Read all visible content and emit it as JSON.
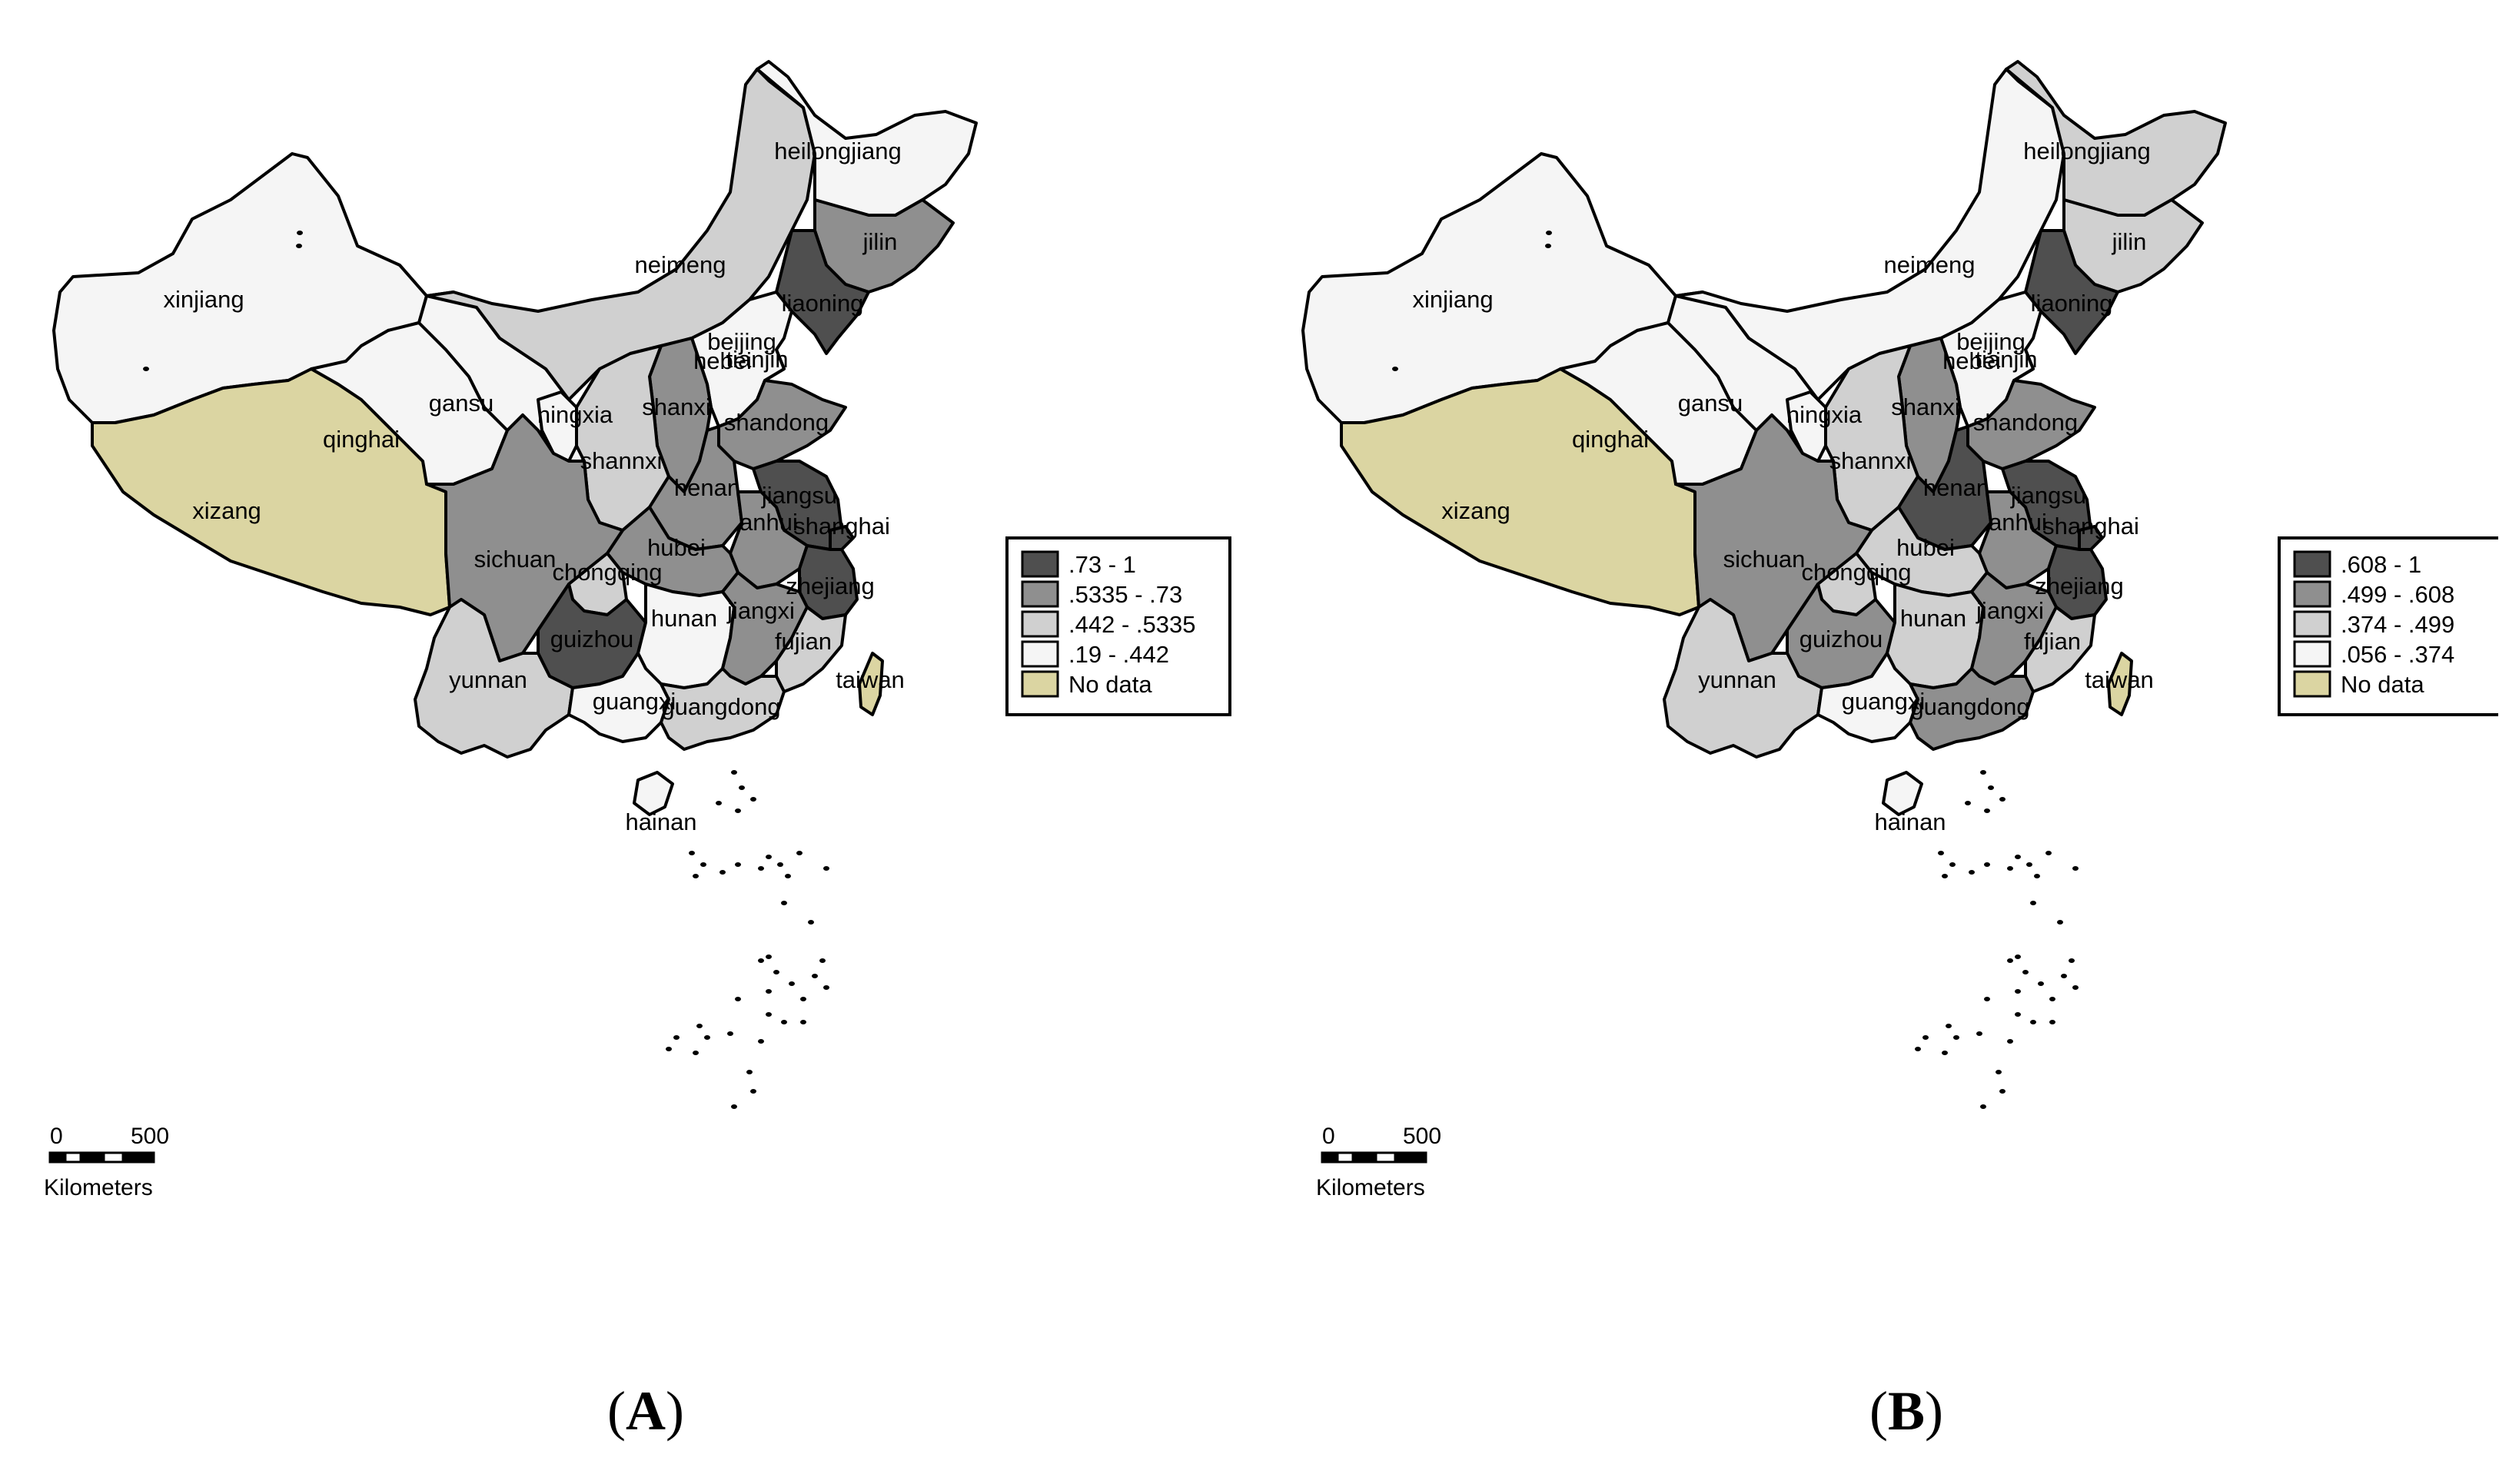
{
  "colors": {
    "c1": "#4f4f4f",
    "c2": "#8f8f8f",
    "c3": "#d0d0d0",
    "c4": "#f5f5f5",
    "nodata": "#dbd5a2"
  },
  "panels": [
    {
      "caption_letter": "A",
      "legend": [
        {
          "label": ".73 - 1",
          "color_key": "c1"
        },
        {
          "label": ".5335 - .73",
          "color_key": "c2"
        },
        {
          "label": ".442 - .5335",
          "color_key": "c3"
        },
        {
          "label": ".19 - .442",
          "color_key": "c4"
        },
        {
          "label": "No data",
          "color_key": "nodata"
        }
      ],
      "scale": {
        "start": "0",
        "end": "500",
        "unit": "Kilometers"
      },
      "provinces": {
        "xinjiang": "c4",
        "xizang": "nodata",
        "qinghai": "c4",
        "gansu": "c4",
        "neimeng": "c3",
        "heilongjiang": "c4",
        "jilin": "c2",
        "liaoning": "c1",
        "beijing": "c1",
        "tianjin": "c4",
        "hebei": "c4",
        "shanxi": "c2",
        "ningxia": "c4",
        "shannxi": "c3",
        "shandong": "c2",
        "henan": "c2",
        "jiangsu": "c1",
        "anhui": "c2",
        "shanghai": "c1",
        "zhejiang": "c1",
        "hubei": "c2",
        "sichuan": "c2",
        "chongqing": "c3",
        "guizhou": "c1",
        "hunan": "c4",
        "jiangxi": "c2",
        "fujian": "c3",
        "yunnan": "c3",
        "guangxi": "c4",
        "guangdong": "c3",
        "hainan": "c4",
        "taiwan": "nodata"
      }
    },
    {
      "caption_letter": "B",
      "legend": [
        {
          "label": ".608 - 1",
          "color_key": "c1"
        },
        {
          "label": ".499 - .608",
          "color_key": "c2"
        },
        {
          "label": ".374 - .499",
          "color_key": "c3"
        },
        {
          "label": ".056 - .374",
          "color_key": "c4"
        },
        {
          "label": "No data",
          "color_key": "nodata"
        }
      ],
      "scale": {
        "start": "0",
        "end": "500",
        "unit": "Kilometers"
      },
      "provinces": {
        "xinjiang": "c4",
        "xizang": "nodata",
        "qinghai": "c4",
        "gansu": "c4",
        "neimeng": "c4",
        "heilongjiang": "c3",
        "jilin": "c3",
        "liaoning": "c1",
        "beijing": "c1",
        "tianjin": "c4",
        "hebei": "c4",
        "shanxi": "c2",
        "ningxia": "c4",
        "shannxi": "c3",
        "shandong": "c2",
        "henan": "c1",
        "jiangsu": "c1",
        "anhui": "c2",
        "shanghai": "c1",
        "zhejiang": "c1",
        "hubei": "c3",
        "sichuan": "c2",
        "chongqing": "c3",
        "guizhou": "c2",
        "hunan": "c3",
        "jiangxi": "c2",
        "fujian": "c3",
        "yunnan": "c3",
        "guangxi": "c4",
        "guangdong": "c2",
        "hainan": "c4",
        "taiwan": "nodata"
      }
    }
  ],
  "province_names": {
    "xinjiang": "xinjiang",
    "xizang": "xizang",
    "qinghai": "qinghai",
    "gansu": "gansu",
    "neimeng": "neimeng",
    "heilongjiang": "heilongjiang",
    "jilin": "jilin",
    "liaoning": "liaoning",
    "beijing": "beijing",
    "tianjin": "tianjin",
    "hebei": "hebei",
    "shanxi": "shanxi",
    "ningxia": "ningxia",
    "shannxi": "shannxi",
    "shandong": "shandong",
    "henan": "henan",
    "jiangsu": "jiangsu",
    "anhui": "anhui",
    "shanghai": "shanghai",
    "zhejiang": "zhejiang",
    "hubei": "hubei",
    "sichuan": "sichuan",
    "chongqing": "chongqing",
    "guizhou": "guizhou",
    "hunan": "hunan",
    "jiangxi": "jiangxi",
    "fujian": "fujian",
    "yunnan": "yunnan",
    "guangxi": "guangxi",
    "guangdong": "guangdong",
    "hainan": "hainan",
    "taiwan": "taiwan"
  }
}
